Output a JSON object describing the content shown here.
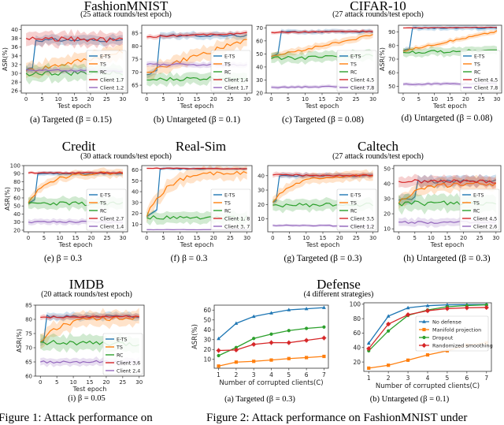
{
  "group_titles": {
    "fashion": {
      "title": "FashionMNIST",
      "subtitle": "(25 attack rounds/test epoch)"
    },
    "cifar": {
      "title": "CIFAR-10",
      "subtitle": "(27 attack rounds/test epoch)"
    },
    "credit": {
      "title": "Credit"
    },
    "realsim": {
      "title": "Real-Sim",
      "subtitle": "(30 attack rounds/test epoch)"
    },
    "caltech": {
      "title": "Caltech",
      "subtitle": "(27 attack rounds/test epoch)"
    },
    "imdb": {
      "title": "IMDB",
      "subtitle": "(20 attack rounds/test epoch)"
    },
    "defense": {
      "title": "Defense",
      "subtitle": "(4 different strategies)"
    }
  },
  "figure_captions": {
    "fig1": "Figure 1: Attack performance on",
    "fig2": "Figure 2: Attack performance on FashionMNIST under"
  },
  "series_colors": {
    "E-TS": "#1f77b4",
    "TS": "#ff7f0e",
    "RC": "#2ca02c",
    "ClientA": "#d62728",
    "ClientB": "#9467bd"
  },
  "chart_data": [
    {
      "id": "a",
      "type": "line",
      "caption": "(a) Targeted (β = 0.15)",
      "xlabel": "Test epoch",
      "ylabel": "ASR(%)",
      "xlim": [
        0,
        30
      ],
      "ylim": [
        25.5,
        41
      ],
      "xticks": [
        0,
        5,
        10,
        15,
        20,
        25,
        30
      ],
      "yticks": [
        26,
        28,
        30,
        32,
        34,
        36,
        38,
        40
      ],
      "legend": [
        "E-TS",
        "TS",
        "RC",
        "Client 1,7",
        "Client 1,2"
      ],
      "legend_position": "lower-right",
      "grid": false,
      "series": [
        {
          "name": "E-TS",
          "start": 30.8,
          "rise_epoch": 3,
          "end": 37.6,
          "band": 1.2
        },
        {
          "name": "TS",
          "start": 30.5,
          "end": 34.8,
          "shape": "linear",
          "band": 2.0
        },
        {
          "name": "RC",
          "start": 30.0,
          "end": 30.1,
          "shape": "flat",
          "band": 2.0
        },
        {
          "name": "Client 1,7",
          "start": 38.0,
          "end": 37.6,
          "shape": "flat",
          "band": 1.8
        },
        {
          "name": "Client 1,2",
          "start": 30.8,
          "end": 30.4,
          "shape": "flat",
          "band": 0.7
        }
      ]
    },
    {
      "id": "b",
      "type": "line",
      "caption": "(b) Untargeted (β = 0.1)",
      "xlabel": "Test epoch",
      "ylabel": "",
      "xlim": [
        0,
        30
      ],
      "ylim": [
        62,
        88
      ],
      "xticks": [
        0,
        5,
        10,
        15,
        20,
        25,
        30
      ],
      "yticks": [
        65,
        70,
        75,
        80,
        85
      ],
      "legend": [
        "E-TS",
        "TS",
        "RC",
        "Client 1,4",
        "Client 1,7"
      ],
      "legend_position": "lower-right",
      "grid": false,
      "series": [
        {
          "name": "E-TS",
          "start": 69.0,
          "rise_epoch": 3.5,
          "end": 84.0,
          "band": 1.5
        },
        {
          "name": "TS",
          "start": 70.0,
          "end": 82.5,
          "shape": "linear",
          "band": 3.0
        },
        {
          "name": "RC",
          "start": 67.0,
          "end": 68.0,
          "shape": "flat",
          "band": 2.5
        },
        {
          "name": "Client 1,4",
          "start": 83.5,
          "end": 85.0,
          "shape": "flat",
          "band": 1.0
        },
        {
          "name": "Client 1,7",
          "start": 73.0,
          "end": 72.8,
          "shape": "flat",
          "band": 1.2
        }
      ]
    },
    {
      "id": "c",
      "type": "line",
      "caption": "(c) Targeted (β = 0.08)",
      "xlabel": "Test epoch",
      "ylabel": "",
      "xlim": [
        0,
        30
      ],
      "ylim": [
        20,
        72
      ],
      "xticks": [
        0,
        5,
        10,
        15,
        20,
        25,
        30
      ],
      "yticks": [
        20,
        30,
        40,
        50,
        60,
        70
      ],
      "legend": [
        "E-TS",
        "TS",
        "RC",
        "Client 4,5",
        "Client 7,8"
      ],
      "legend_position": "lower-right",
      "grid": false,
      "series": [
        {
          "name": "E-TS",
          "start": 48.0,
          "rise_epoch": 3,
          "end": 67.0,
          "band": 2.0
        },
        {
          "name": "TS",
          "start": 48.0,
          "end": 64.5,
          "shape": "linear",
          "band": 3.0
        },
        {
          "name": "RC",
          "start": 46.5,
          "end": 48.5,
          "shape": "flat",
          "band": 4.5
        },
        {
          "name": "Client 4,5",
          "start": 66.5,
          "end": 67.5,
          "shape": "flat",
          "band": 1.5
        },
        {
          "name": "Client 7,8",
          "start": 24.5,
          "end": 25.0,
          "shape": "flat",
          "band": 1.5
        }
      ]
    },
    {
      "id": "d",
      "type": "line",
      "caption": "(d) Untargeted (β = 0.08)",
      "xlabel": "Test epoch",
      "ylabel": "ASR(%)",
      "xlim": [
        0,
        30
      ],
      "ylim": [
        45,
        95
      ],
      "xticks": [
        0,
        5,
        10,
        15,
        20,
        25,
        30
      ],
      "yticks": [
        50,
        60,
        70,
        80,
        90
      ],
      "legend": [
        "E-TS",
        "TS",
        "RC",
        "Client 4,5",
        "Client 7,8"
      ],
      "legend_position": "lower-right",
      "grid": false,
      "series": [
        {
          "name": "E-TS",
          "start": 76.0,
          "rise_epoch": 3,
          "end": 93.0,
          "band": 2.0
        },
        {
          "name": "TS",
          "start": 76.0,
          "end": 90.5,
          "shape": "linear",
          "band": 2.0
        },
        {
          "name": "RC",
          "start": 75.0,
          "end": 76.5,
          "shape": "flat",
          "band": 3.5
        },
        {
          "name": "Client 4,5",
          "start": 93.0,
          "end": 93.5,
          "shape": "flat",
          "band": 0.5
        },
        {
          "name": "Client 7,8",
          "start": 51.5,
          "end": 52.0,
          "shape": "flat",
          "band": 1.5
        }
      ]
    },
    {
      "id": "e",
      "type": "line",
      "caption": "(e) β = 0.3",
      "xlabel": "Test epoch",
      "ylabel": "ASR(%)",
      "xlim": [
        0,
        30
      ],
      "ylim": [
        18,
        100
      ],
      "xticks": [
        0,
        5,
        10,
        15,
        20,
        25,
        30
      ],
      "yticks": [
        20,
        30,
        40,
        50,
        60,
        70,
        80,
        90,
        100
      ],
      "legend": [
        "E-TS",
        "TS",
        "RC",
        "Client 2,7",
        "Client 1,4"
      ],
      "legend_position": "lower-right",
      "grid": false,
      "series": [
        {
          "name": "E-TS",
          "start": 54.0,
          "rise_epoch": 3,
          "end": 90.0,
          "band": 3.0
        },
        {
          "name": "TS",
          "start": 54.0,
          "end": 91.0,
          "shape": "log",
          "band": 6.0
        },
        {
          "name": "RC",
          "start": 53.0,
          "end": 53.0,
          "shape": "flat",
          "band": 8.0
        },
        {
          "name": "Client 2,7",
          "start": 91.0,
          "end": 91.0,
          "shape": "flat",
          "band": 2.0
        },
        {
          "name": "Client 1,4",
          "start": 30.0,
          "end": 30.0,
          "shape": "flat",
          "band": 4.0
        }
      ]
    },
    {
      "id": "f",
      "type": "line",
      "caption": "(f) β = 0.3",
      "xlabel": "Test epoch",
      "ylabel": "",
      "xlim": [
        0,
        30
      ],
      "ylim": [
        3,
        64
      ],
      "xticks": [
        0,
        5,
        10,
        15,
        20,
        25,
        30
      ],
      "yticks": [
        10,
        20,
        30,
        40,
        50,
        60
      ],
      "legend": [
        "E-TS",
        "TS",
        "RC",
        "Client 1, 8",
        "Client 3, 7"
      ],
      "legend_position": "lower-right",
      "grid": false,
      "series": [
        {
          "name": "E-TS",
          "start": 17.0,
          "rise_epoch": 3.5,
          "end": 61.0,
          "band": 1.5
        },
        {
          "name": "TS",
          "start": 17.0,
          "end": 58.0,
          "shape": "log",
          "band": 7.0
        },
        {
          "name": "RC",
          "start": 16.0,
          "end": 16.0,
          "shape": "flat",
          "band": 6.0
        },
        {
          "name": "Client 1, 8",
          "start": 61.5,
          "end": 61.0,
          "shape": "flat",
          "band": 1.0
        },
        {
          "name": "Client 3, 7",
          "start": 5.0,
          "end": 5.0,
          "shape": "flat",
          "band": 0.5
        }
      ]
    },
    {
      "id": "g",
      "type": "line",
      "caption": "(g) Targeted (β = 0.3)",
      "xlabel": "Test epoch",
      "ylabel": "",
      "xlim": [
        0,
        30
      ],
      "ylim": [
        1,
        47
      ],
      "xticks": [
        0,
        5,
        10,
        15,
        20,
        25,
        30
      ],
      "yticks": [
        10,
        20,
        30,
        40
      ],
      "legend": [
        "E-TS",
        "TS",
        "RC",
        "Client 3,5",
        "Client 1,2"
      ],
      "legend_position": "lower-right",
      "grid": false,
      "series": [
        {
          "name": "E-TS",
          "start": 21.5,
          "rise_epoch": 2,
          "end": 40.0,
          "band": 2.0
        },
        {
          "name": "TS",
          "start": 21.5,
          "end": 40.0,
          "shape": "log",
          "band": 4.0
        },
        {
          "name": "RC",
          "start": 19.5,
          "end": 20.0,
          "shape": "flat",
          "band": 4.5
        },
        {
          "name": "Client 3,5",
          "start": 40.5,
          "end": 40.0,
          "shape": "flat",
          "band": 2.0
        },
        {
          "name": "Client 1,2",
          "start": 5.5,
          "end": 5.0,
          "shape": "flat",
          "band": 1.0
        }
      ]
    },
    {
      "id": "h",
      "type": "line",
      "caption": "(h) Untargeted (β = 0.3)",
      "xlabel": "Test epoch",
      "ylabel": "",
      "xlim": [
        0,
        30
      ],
      "ylim": [
        8,
        52
      ],
      "xticks": [
        0,
        5,
        10,
        15,
        20,
        25,
        30
      ],
      "yticks": [
        10,
        20,
        30,
        40,
        50
      ],
      "legend": [
        "E-TS",
        "TS",
        "RC",
        "Client 4,5",
        "Client 2,6"
      ],
      "legend_position": "lower-right",
      "grid": false,
      "series": [
        {
          "name": "E-TS",
          "start": 29.0,
          "rise_epoch": 6,
          "end": 41.5,
          "band": 4.0
        },
        {
          "name": "TS",
          "start": 27.0,
          "end": 40.0,
          "shape": "log",
          "band": 5.0
        },
        {
          "name": "RC",
          "start": 27.0,
          "end": 27.0,
          "shape": "flat",
          "band": 6.0
        },
        {
          "name": "Client 4,5",
          "start": 41.5,
          "end": 41.5,
          "shape": "flat",
          "band": 4.0
        },
        {
          "name": "Client 2,6",
          "start": 14.5,
          "end": 14.0,
          "shape": "flat",
          "band": 3.0
        }
      ]
    },
    {
      "id": "i",
      "type": "line",
      "caption": "(i) β = 0.05",
      "xlabel": "Test epoch",
      "ylabel": "ASR(%)",
      "xlim": [
        0,
        30
      ],
      "ylim": [
        60,
        85
      ],
      "xticks": [
        0,
        5,
        10,
        15,
        20,
        25,
        30
      ],
      "yticks": [
        60,
        65,
        70,
        75,
        80,
        85
      ],
      "legend": [
        "E-TS",
        "TS",
        "RC",
        "Client 3,6",
        "Client 2,4"
      ],
      "legend_position": "lower-right",
      "grid": false,
      "series": [
        {
          "name": "E-TS",
          "start": 72.0,
          "rise_epoch": 2,
          "end": 81.0,
          "band": 1.5
        },
        {
          "name": "TS",
          "start": 72.0,
          "end": 80.5,
          "shape": "log",
          "band": 3.0
        },
        {
          "name": "RC",
          "start": 72.0,
          "end": 71.0,
          "shape": "flat",
          "band": 3.0
        },
        {
          "name": "Client 3,6",
          "start": 80.7,
          "end": 81.0,
          "shape": "flat",
          "band": 1.0
        },
        {
          "name": "Client 2,4",
          "start": 65.0,
          "end": 65.0,
          "shape": "flat",
          "band": 1.5
        }
      ]
    },
    {
      "id": "def-a",
      "type": "line",
      "caption": "(a) Targeted (β = 0.3)",
      "xlabel": "Number of corrupted clients(C)",
      "ylabel": "ASR(%)",
      "xlim": [
        0.75,
        7.25
      ],
      "ylim": [
        1,
        65
      ],
      "xticks": [
        1,
        2,
        3,
        4,
        5,
        6,
        7
      ],
      "yticks": [
        10,
        20,
        30,
        40,
        50,
        60
      ],
      "x": [
        1,
        2,
        3,
        4,
        5,
        6,
        7
      ],
      "grid": false,
      "series": [
        {
          "name": "No defense",
          "values": [
            31,
            46.5,
            53.5,
            57,
            60.2,
            61.3,
            62.5
          ],
          "marker": "triangle",
          "color": "#1f77b4"
        },
        {
          "name": "Manifold projection",
          "values": [
            3.2,
            7.2,
            8.0,
            9.3,
            10.8,
            11.8,
            13.0
          ],
          "marker": "square",
          "color": "#ff7f0e"
        },
        {
          "name": "Dropout",
          "values": [
            13.8,
            22.0,
            31.2,
            35.6,
            39.2,
            41.4,
            42.8
          ],
          "marker": "circle",
          "color": "#2ca02c"
        },
        {
          "name": "Randomized smoothing",
          "values": [
            19.0,
            19.5,
            25.2,
            27.0,
            26.9,
            29.3,
            31.7
          ],
          "marker": "plus",
          "color": "#d62728"
        }
      ]
    },
    {
      "id": "def-b",
      "type": "line",
      "caption": "(b) Untargeted (β = 0.1)",
      "xlabel": "Number of corrupted clients(C)",
      "ylabel": "",
      "xlim": [
        0.75,
        7.25
      ],
      "ylim": [
        7,
        102
      ],
      "xticks": [
        1,
        2,
        3,
        4,
        5,
        6,
        7
      ],
      "yticks": [
        20,
        40,
        60,
        80,
        100
      ],
      "x": [
        1,
        2,
        3,
        4,
        5,
        6,
        7
      ],
      "grid": false,
      "legend_position": "upper-right",
      "legend": [
        "No defense",
        "Manifold projection",
        "Dropout",
        "Randomized smoothing"
      ],
      "series": [
        {
          "name": "No defense",
          "values": [
            46,
            83.5,
            95,
            98,
            99.2,
            99.5,
            99.7
          ],
          "marker": "triangle",
          "color": "#1f77b4"
        },
        {
          "name": "Manifold projection",
          "values": [
            11.5,
            15.5,
            22.5,
            29.8,
            35.5,
            43.5,
            46.5
          ],
          "marker": "square",
          "color": "#ff7f0e"
        },
        {
          "name": "Dropout",
          "values": [
            35.5,
            63,
            84.5,
            92,
            96.5,
            98.2,
            99.2
          ],
          "marker": "circle",
          "color": "#2ca02c"
        },
        {
          "name": "Randomized smoothing",
          "values": [
            38.5,
            72.5,
            85.5,
            91,
            94,
            95,
            95.5
          ],
          "marker": "plus",
          "color": "#d62728"
        }
      ]
    }
  ]
}
